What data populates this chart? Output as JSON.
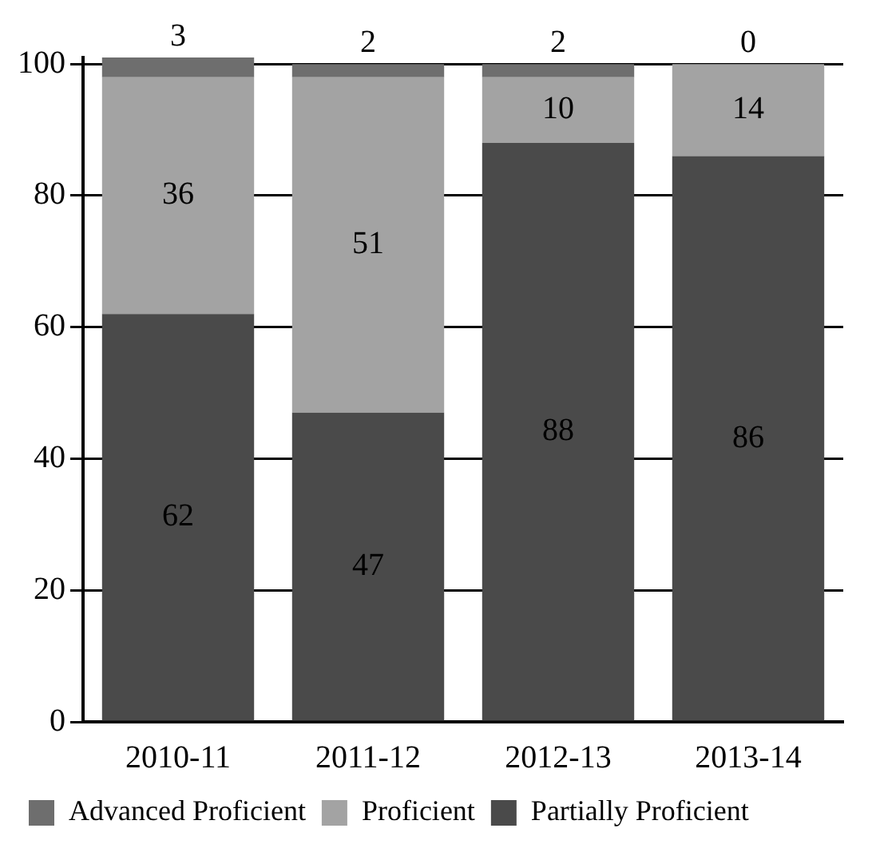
{
  "chart_data": {
    "type": "bar",
    "stacked": true,
    "categories": [
      "2010-11",
      "2011-12",
      "2012-13",
      "2013-14"
    ],
    "series": [
      {
        "name": "Partially Proficient",
        "color": "#4a4a4a",
        "values": [
          62,
          47,
          88,
          86
        ]
      },
      {
        "name": "Proficient",
        "color": "#a3a3a3",
        "values": [
          36,
          51,
          10,
          14
        ]
      },
      {
        "name": "Advanced Proficient",
        "color": "#6e6e6e",
        "values": [
          3,
          2,
          2,
          0
        ]
      }
    ],
    "ylim": [
      0,
      101
    ],
    "yticks": [
      0,
      20,
      40,
      60,
      80,
      100
    ],
    "grid": "y",
    "legend": "bottom",
    "data_labels": true
  }
}
